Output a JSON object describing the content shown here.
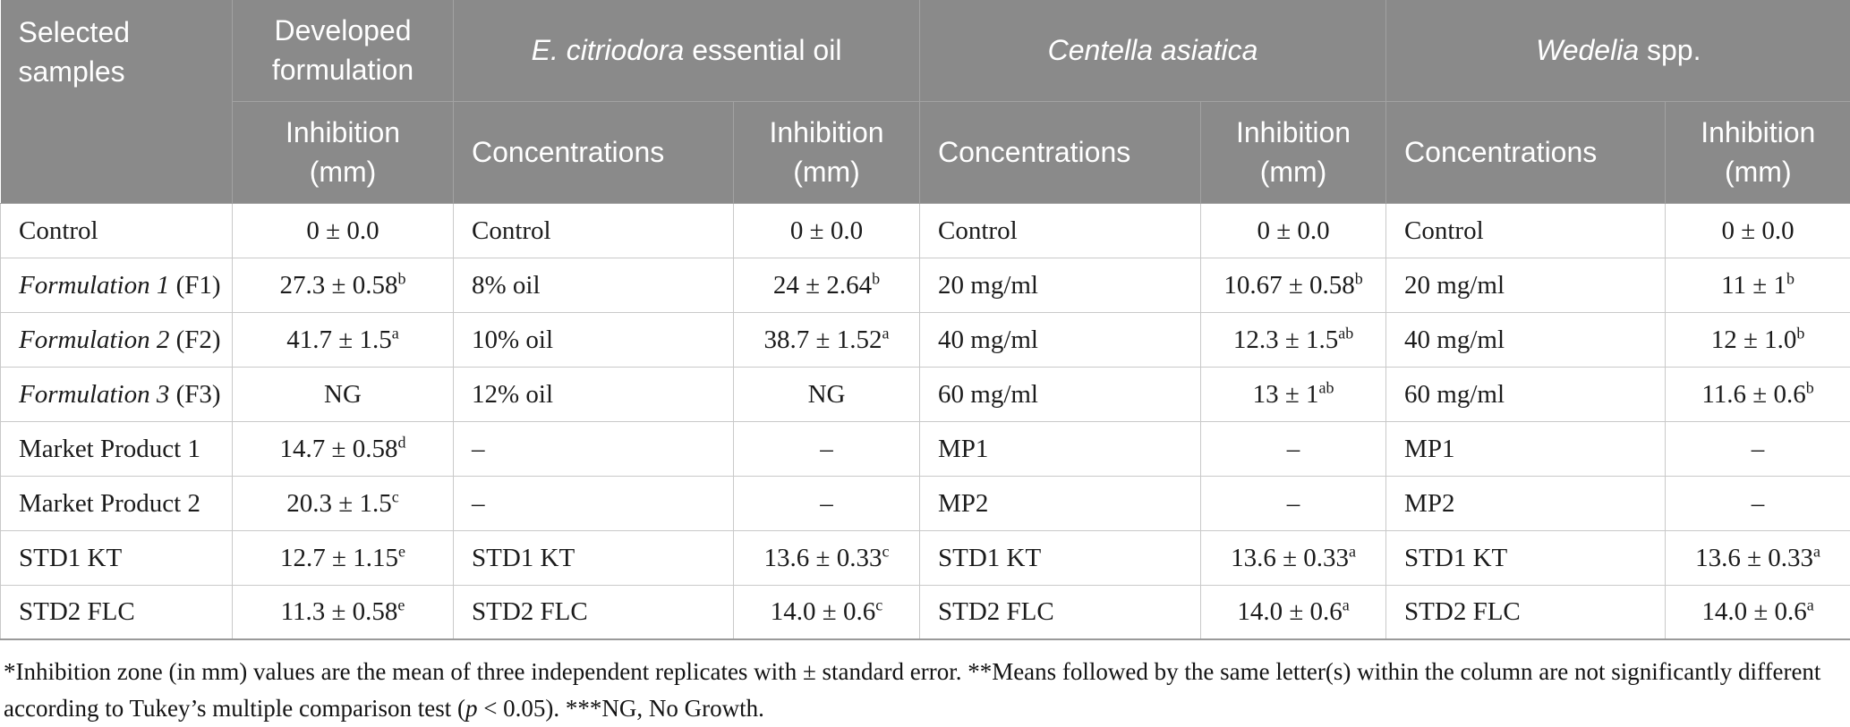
{
  "header": {
    "selected_samples": "Selected samples",
    "groups": {
      "developed": "Developed formulation",
      "ec": {
        "italic": "E. citriodora",
        "rest": " essential oil"
      },
      "ca": {
        "italic": "Centella asiatica",
        "rest": ""
      },
      "we": {
        "italic": "Wedelia",
        "rest": " spp."
      }
    },
    "sub": {
      "concentrations": "Concentrations",
      "inhibition": "Inhibition (mm)"
    }
  },
  "rows": [
    {
      "cells": [
        {
          "text": "Control"
        },
        {
          "text": "0 ± 0.0"
        },
        {
          "text": "Control"
        },
        {
          "text": "0 ± 0.0"
        },
        {
          "text": "Control"
        },
        {
          "text": "0 ± 0.0"
        },
        {
          "text": "Control"
        },
        {
          "text": "0 ± 0.0"
        }
      ]
    },
    {
      "cells": [
        {
          "italic": "Formulation 1",
          "text": " (F1)"
        },
        {
          "text": "27.3 ± 0.58",
          "sup": "b"
        },
        {
          "text": "8% oil"
        },
        {
          "text": "24 ± 2.64",
          "sup": "b"
        },
        {
          "text": "20 mg/ml"
        },
        {
          "text": "10.67 ± 0.58",
          "sup": "b"
        },
        {
          "text": "20 mg/ml"
        },
        {
          "text": "11 ± 1",
          "sup": "b"
        }
      ]
    },
    {
      "cells": [
        {
          "italic": "Formulation 2",
          "text": " (F2)"
        },
        {
          "text": "41.7 ± 1.5",
          "sup": "a"
        },
        {
          "text": "10% oil"
        },
        {
          "text": "38.7 ± 1.52",
          "sup": "a"
        },
        {
          "text": "40 mg/ml"
        },
        {
          "text": "12.3 ± 1.5",
          "sup": "ab"
        },
        {
          "text": "40 mg/ml"
        },
        {
          "text": "12 ± 1.0",
          "sup": "b"
        }
      ]
    },
    {
      "cells": [
        {
          "italic": "Formulation 3",
          "text": " (F3)"
        },
        {
          "text": "NG"
        },
        {
          "text": "12% oil"
        },
        {
          "text": "NG"
        },
        {
          "text": "60 mg/ml"
        },
        {
          "text": "13 ± 1",
          "sup": "ab"
        },
        {
          "text": "60 mg/ml"
        },
        {
          "text": "11.6 ± 0.6",
          "sup": "b"
        }
      ]
    },
    {
      "cells": [
        {
          "text": "Market Product 1"
        },
        {
          "text": "14.7 ± 0.58",
          "sup": "d"
        },
        {
          "text": "–"
        },
        {
          "text": "–"
        },
        {
          "text": "MP1"
        },
        {
          "text": "–"
        },
        {
          "text": "MP1"
        },
        {
          "text": "–"
        }
      ]
    },
    {
      "cells": [
        {
          "text": "Market Product 2"
        },
        {
          "text": "20.3 ± 1.5",
          "sup": "c"
        },
        {
          "text": "–"
        },
        {
          "text": "–"
        },
        {
          "text": "MP2"
        },
        {
          "text": "–"
        },
        {
          "text": "MP2"
        },
        {
          "text": "–"
        }
      ]
    },
    {
      "cells": [
        {
          "text": "STD1 KT"
        },
        {
          "text": "12.7 ± 1.15",
          "sup": "e"
        },
        {
          "text": "STD1 KT"
        },
        {
          "text": "13.6 ± 0.33",
          "sup": "c"
        },
        {
          "text": "STD1 KT"
        },
        {
          "text": "13.6 ± 0.33",
          "sup": "a"
        },
        {
          "text": "STD1 KT"
        },
        {
          "text": "13.6 ± 0.33",
          "sup": "a"
        }
      ]
    },
    {
      "cells": [
        {
          "text": "STD2 FLC"
        },
        {
          "text": "11.3 ± 0.58",
          "sup": "e"
        },
        {
          "text": "STD2 FLC"
        },
        {
          "text": "14.0 ± 0.6",
          "sup": "c"
        },
        {
          "text": "STD2 FLC"
        },
        {
          "text": "14.0 ± 0.6",
          "sup": "a"
        },
        {
          "text": "STD2 FLC"
        },
        {
          "text": "14.0 ± 0.6",
          "sup": "a"
        }
      ]
    }
  ],
  "footnote": {
    "part1": "*Inhibition zone (in mm) values are the mean of three independent replicates with ± standard error. **Means followed by the same letter(s) within the column are not significantly different according to Tukey’s multiple comparison test (",
    "p_italic": "p",
    "part2": " < 0.05). ***NG, No Growth."
  },
  "colors": {
    "header_bg": "#8a8a8a",
    "header_text": "#ffffff",
    "body_border": "#c9c9c9",
    "bottom_rule": "#9a9a9a",
    "text": "#1b1b1b"
  }
}
